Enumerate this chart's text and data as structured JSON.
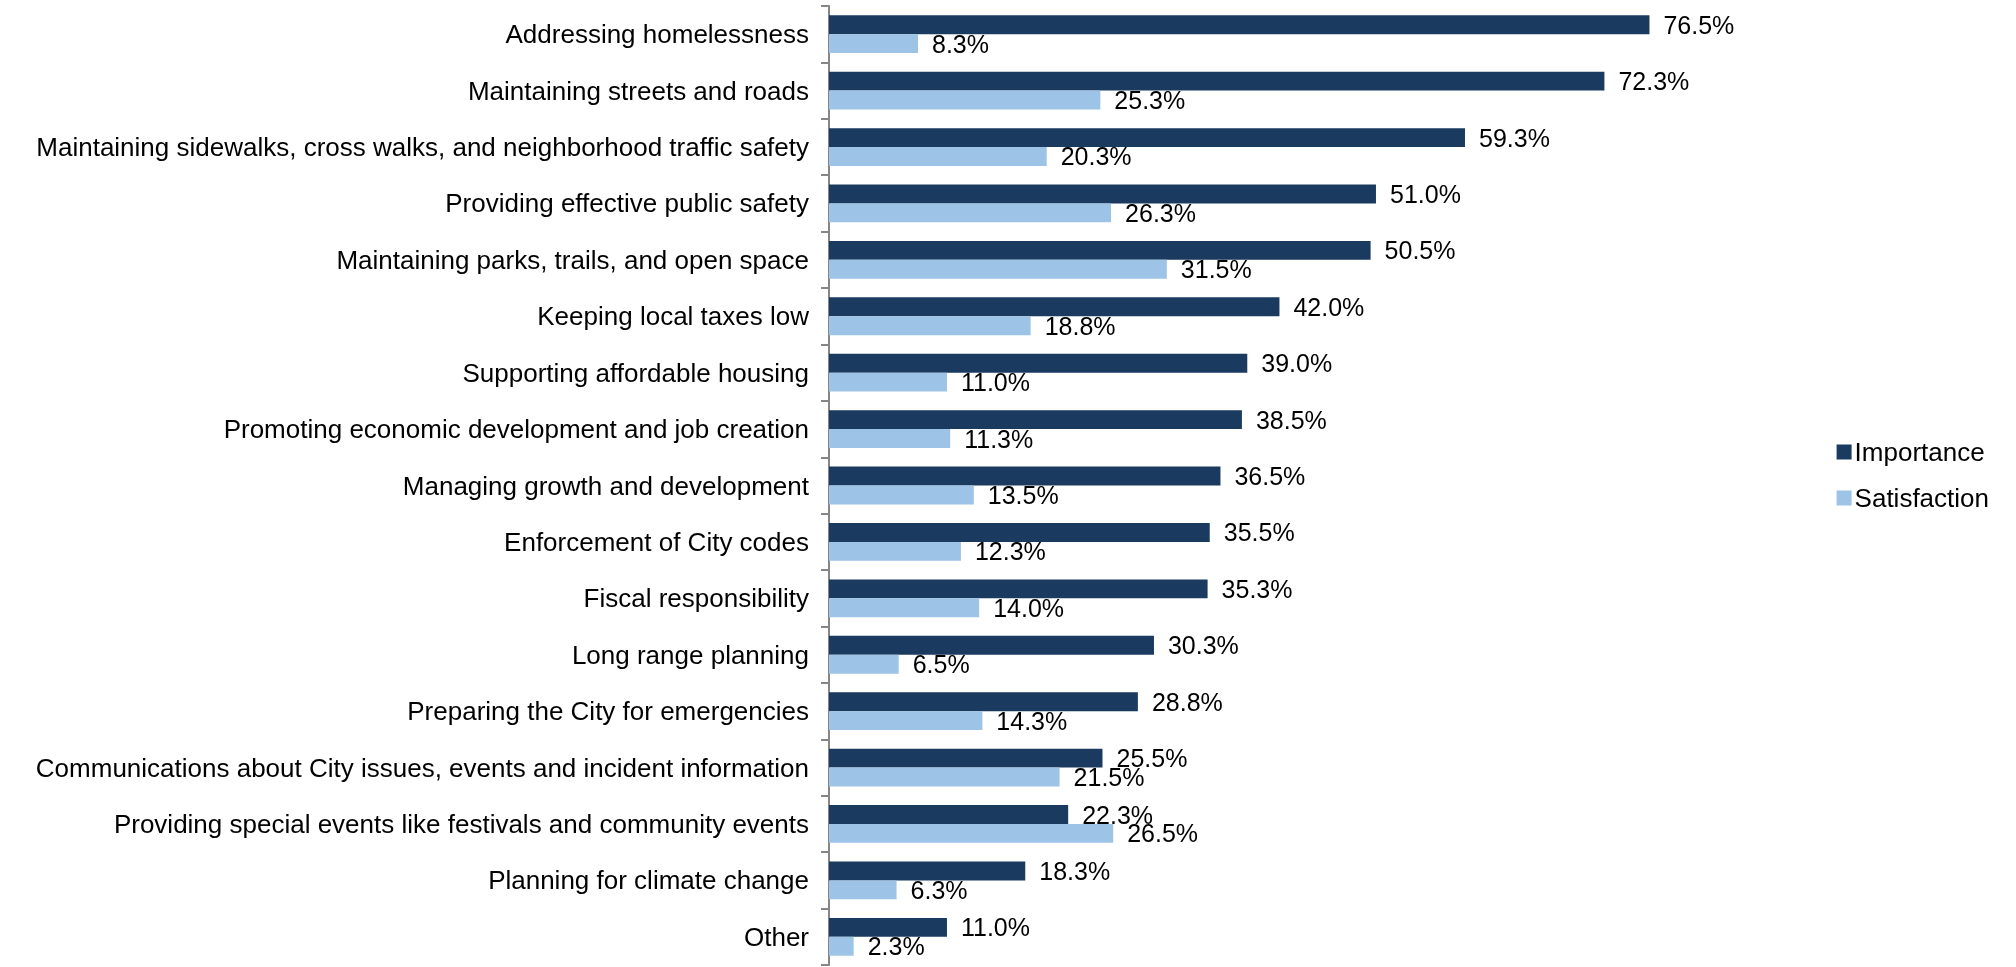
{
  "chart_data": {
    "type": "bar",
    "orientation": "horizontal",
    "categories": [
      "Addressing homelessness",
      "Maintaining streets and roads",
      "Maintaining sidewalks, cross walks, and neighborhood traffic safety",
      "Providing effective public safety",
      "Maintaining parks, trails, and open space",
      "Keeping local taxes low",
      "Supporting affordable housing",
      "Promoting economic development and job creation",
      "Managing growth and development",
      "Enforcement of City codes",
      "Fiscal responsibility",
      "Long range planning",
      "Preparing the City for emergencies",
      "Communications about City issues, events and incident information",
      "Providing special events like festivals and community events",
      "Planning for climate change",
      "Other"
    ],
    "series": [
      {
        "name": "Importance",
        "color": "#1b3a5f",
        "values": [
          76.5,
          72.3,
          59.3,
          51.0,
          50.5,
          42.0,
          39.0,
          38.5,
          36.5,
          35.5,
          35.3,
          30.3,
          28.8,
          25.5,
          22.3,
          18.3,
          11.0
        ],
        "value_labels": [
          "76.5%",
          "72.3%",
          "59.3%",
          "51.0%",
          "50.5%",
          "42.0%",
          "39.0%",
          "38.5%",
          "36.5%",
          "35.5%",
          "35.3%",
          "30.3%",
          "28.8%",
          "25.5%",
          "22.3%",
          "18.3%",
          "11.0%"
        ]
      },
      {
        "name": "Satisfaction",
        "color": "#9dc3e6",
        "values": [
          8.3,
          25.3,
          20.3,
          26.3,
          31.5,
          18.8,
          11.0,
          11.3,
          13.5,
          12.3,
          14.0,
          6.5,
          14.3,
          21.5,
          26.5,
          6.3,
          2.3
        ],
        "value_labels": [
          "8.3%",
          "25.3%",
          "20.3%",
          "26.3%",
          "31.5%",
          "18.8%",
          "11.0%",
          "11.3%",
          "13.5%",
          "12.3%",
          "14.0%",
          "6.5%",
          "14.3%",
          "21.5%",
          "26.5%",
          "6.3%",
          "2.3%"
        ]
      }
    ],
    "legend": "right",
    "grid": false,
    "tick_labels": "y"
  }
}
